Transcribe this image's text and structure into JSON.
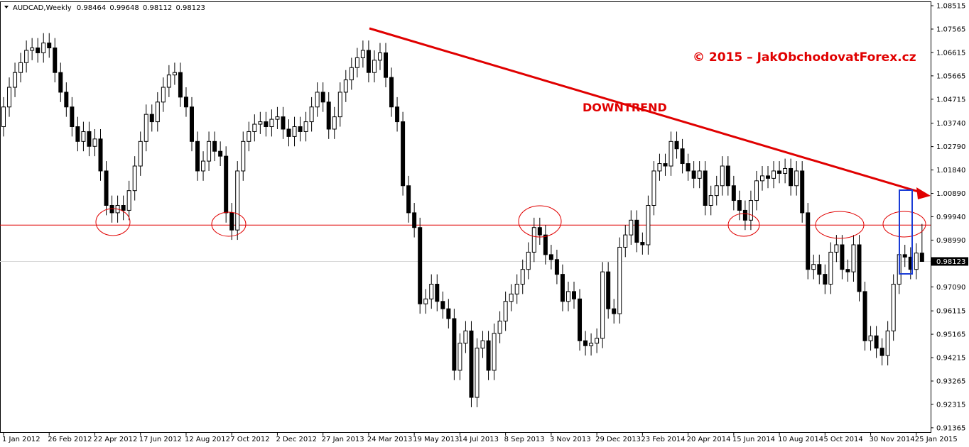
{
  "chart_data": {
    "type": "candlestick",
    "symbol": "AUDCAD,Weekly",
    "copyright": "© 2015 – JakObchodovatForex.cz",
    "annotation": "DOWNTREND",
    "up_color": "#ffffff",
    "down_color": "#000000",
    "level_color": "#e00000",
    "level": 0.996,
    "ylim": [
      0.9116,
      1.0866
    ],
    "yticks": [
      1.08515,
      1.07565,
      1.06615,
      1.05665,
      1.04715,
      {
        "value": 1.0374,
        "label": "1.03740"
      },
      {
        "value": 1.0279,
        "label": "1.02790"
      },
      {
        "value": 1.0184,
        "label": "1.01840"
      },
      {
        "value": 1.0089,
        "label": "1.00890"
      },
      {
        "value": 0.9994,
        "label": "0.99940"
      },
      {
        "value": 0.9899,
        "label": "0.98990"
      },
      {
        "value": 0.9709,
        "label": "0.97090"
      },
      0.96115,
      0.95165,
      0.94215,
      0.93265,
      0.92315,
      0.91365
    ],
    "categories": [
      "1 Jan 2012",
      null,
      null,
      null,
      null,
      null,
      null,
      null,
      "26 Feb 2012",
      null,
      null,
      null,
      null,
      null,
      null,
      null,
      "22 Apr 2012",
      null,
      null,
      null,
      null,
      null,
      null,
      null,
      "17 Jun 2012",
      null,
      null,
      null,
      null,
      null,
      null,
      null,
      "12 Aug 2012",
      null,
      null,
      null,
      null,
      null,
      null,
      null,
      "7 Oct 2012",
      null,
      null,
      null,
      null,
      null,
      null,
      null,
      "2 Dec 2012",
      null,
      null,
      null,
      null,
      null,
      null,
      null,
      "27 Jan 2013",
      null,
      null,
      null,
      null,
      null,
      null,
      null,
      "24 Mar 2013",
      null,
      null,
      null,
      null,
      null,
      null,
      null,
      "19 May 2013",
      null,
      null,
      null,
      null,
      null,
      null,
      null,
      "14 Jul 2013",
      null,
      null,
      null,
      null,
      null,
      null,
      null,
      "8 Sep 2013",
      null,
      null,
      null,
      null,
      null,
      null,
      null,
      "3 Nov 2013",
      null,
      null,
      null,
      null,
      null,
      null,
      null,
      "29 Dec 2013",
      null,
      null,
      null,
      null,
      null,
      null,
      null,
      "23 Feb 2014",
      null,
      null,
      null,
      null,
      null,
      null,
      null,
      "20 Apr 2014",
      null,
      null,
      null,
      null,
      null,
      null,
      null,
      "15 Jun 2014",
      null,
      null,
      null,
      null,
      null,
      null,
      null,
      "10 Aug 2014",
      null,
      null,
      null,
      null,
      null,
      null,
      null,
      "5 Oct 2014",
      null,
      null,
      null,
      null,
      null,
      null,
      null,
      "30 Nov 2014",
      null,
      null,
      null,
      null,
      null,
      null,
      null,
      "25 Jan 2015",
      null
    ],
    "open": [
      1.036,
      1.044,
      1.052,
      1.058,
      1.062,
      1.067,
      1.068,
      1.066,
      1.07,
      1.068,
      1.058,
      1.05,
      1.044,
      1.036,
      1.03,
      1.034,
      1.028,
      1.031,
      1.018,
      1.004,
      1.001,
      1.004,
      1.002,
      1.01,
      1.02,
      1.03,
      1.041,
      1.038,
      1.046,
      1.052,
      1.057,
      1.058,
      1.048,
      1.044,
      1.03,
      1.018,
      1.022,
      1.03,
      1.026,
      1.024,
      1.001,
      0.994,
      1.018,
      1.03,
      1.034,
      1.037,
      1.038,
      1.036,
      1.039,
      1.04,
      1.035,
      1.032,
      1.036,
      1.034,
      1.038,
      1.044,
      1.05,
      1.046,
      1.035,
      1.04,
      1.05,
      1.055,
      1.06,
      1.064,
      1.067,
      1.058,
      1.063,
      1.066,
      1.056,
      1.044,
      1.038,
      1.012,
      1.001,
      0.995,
      0.964,
      0.966,
      0.972,
      0.965,
      0.962,
      0.958,
      0.937,
      0.948,
      0.953,
      0.926,
      0.946,
      0.949,
      0.937,
      0.952,
      0.957,
      0.965,
      0.968,
      0.972,
      0.978,
      0.985,
      0.995,
      0.992,
      0.984,
      0.982,
      0.976,
      0.965,
      0.969,
      0.966,
      0.949,
      0.947,
      0.948,
      0.95,
      0.977,
      0.962,
      0.96,
      0.987,
      0.992,
      0.998,
      0.989,
      0.988,
      1.004,
      1.018,
      1.021,
      1.02,
      1.03,
      1.027,
      1.021,
      1.018,
      1.015,
      1.018,
      1.004,
      1.008,
      1.012,
      1.02,
      1.012,
      1.006,
      1.002,
      0.998,
      1.006,
      1.014,
      1.016,
      1.015,
      1.018,
      1.017,
      1.019,
      1.012,
      1.018,
      1.001,
      0.978,
      0.98,
      0.976,
      0.972,
      0.985,
      0.988,
      0.978,
      0.977,
      0.988,
      0.969,
      0.949,
      0.951,
      0.946,
      0.943,
      0.953,
      0.972,
      0.984,
      0.983,
      0.978,
      0.98464
    ],
    "high": [
      1.048,
      1.056,
      1.062,
      1.066,
      1.071,
      1.072,
      1.072,
      1.074,
      1.074,
      1.072,
      1.062,
      1.054,
      1.048,
      1.04,
      1.038,
      1.038,
      1.035,
      1.035,
      1.022,
      1.008,
      1.008,
      1.008,
      1.014,
      1.024,
      1.034,
      1.045,
      1.045,
      1.05,
      1.056,
      1.061,
      1.062,
      1.062,
      1.052,
      1.048,
      1.034,
      1.026,
      1.034,
      1.034,
      1.03,
      1.028,
      1.005,
      1.022,
      1.034,
      1.038,
      1.041,
      1.042,
      1.042,
      1.043,
      1.044,
      1.044,
      1.039,
      1.04,
      1.04,
      1.042,
      1.048,
      1.054,
      1.054,
      1.05,
      1.044,
      1.054,
      1.059,
      1.064,
      1.068,
      1.071,
      1.071,
      1.067,
      1.07,
      1.07,
      1.06,
      1.048,
      1.042,
      1.016,
      1.005,
      0.999,
      0.97,
      0.976,
      0.976,
      0.969,
      0.966,
      0.962,
      0.952,
      0.957,
      0.957,
      0.95,
      0.953,
      0.953,
      0.956,
      0.961,
      0.969,
      0.972,
      0.976,
      0.982,
      0.989,
      0.999,
      0.999,
      0.996,
      0.988,
      0.986,
      0.98,
      0.973,
      0.973,
      0.97,
      0.953,
      0.952,
      0.954,
      0.981,
      0.981,
      0.966,
      0.991,
      0.996,
      1.002,
      1.002,
      0.993,
      1.008,
      1.022,
      1.025,
      1.025,
      1.034,
      1.034,
      1.031,
      1.025,
      1.022,
      1.022,
      1.022,
      1.012,
      1.016,
      1.024,
      1.024,
      1.016,
      1.01,
      1.006,
      1.01,
      1.018,
      1.02,
      1.02,
      1.022,
      1.022,
      1.023,
      1.023,
      1.022,
      1.022,
      1.005,
      0.984,
      0.984,
      0.98,
      0.989,
      0.992,
      0.992,
      0.982,
      0.992,
      0.992,
      0.973,
      0.955,
      0.955,
      0.95,
      0.957,
      0.976,
      0.988,
      0.988,
      0.987,
      0.9886,
      0.99648
    ],
    "low": [
      1.032,
      1.04,
      1.048,
      1.054,
      1.058,
      1.063,
      1.062,
      1.062,
      1.064,
      1.054,
      1.046,
      1.04,
      1.032,
      1.026,
      1.026,
      1.024,
      1.024,
      1.014,
      1.0,
      0.997,
      0.997,
      0.998,
      0.998,
      1.006,
      1.016,
      1.026,
      1.034,
      1.034,
      1.042,
      1.048,
      1.053,
      1.044,
      1.04,
      1.026,
      1.014,
      1.014,
      1.018,
      1.022,
      1.02,
      0.997,
      0.99,
      0.99,
      1.014,
      1.026,
      1.03,
      1.033,
      1.032,
      1.032,
      1.035,
      1.031,
      1.028,
      1.028,
      1.03,
      1.03,
      1.034,
      1.04,
      1.042,
      1.031,
      1.031,
      1.036,
      1.046,
      1.051,
      1.056,
      1.06,
      1.054,
      1.054,
      1.059,
      1.052,
      1.04,
      1.034,
      1.008,
      0.997,
      0.991,
      0.96,
      0.96,
      0.962,
      0.961,
      0.958,
      0.954,
      0.933,
      0.933,
      0.944,
      0.922,
      0.922,
      0.942,
      0.933,
      0.933,
      0.948,
      0.953,
      0.961,
      0.964,
      0.968,
      0.974,
      0.981,
      0.988,
      0.98,
      0.978,
      0.972,
      0.961,
      0.961,
      0.962,
      0.945,
      0.943,
      0.943,
      0.944,
      0.946,
      0.958,
      0.956,
      0.956,
      0.983,
      0.988,
      0.985,
      0.984,
      0.984,
      1.0,
      1.014,
      1.016,
      1.016,
      1.023,
      1.017,
      1.014,
      1.011,
      1.011,
      1.0,
      1.0,
      1.004,
      1.008,
      1.008,
      1.002,
      0.998,
      0.994,
      0.994,
      1.002,
      1.01,
      1.011,
      1.011,
      1.013,
      1.013,
      1.008,
      1.008,
      0.997,
      0.974,
      0.974,
      0.972,
      0.968,
      0.968,
      0.981,
      0.974,
      0.973,
      0.973,
      0.965,
      0.945,
      0.945,
      0.942,
      0.939,
      0.939,
      0.949,
      0.968,
      0.979,
      0.974,
      0.974,
      0.98112
    ],
    "close": [
      1.044,
      1.052,
      1.058,
      1.062,
      1.067,
      1.068,
      1.066,
      1.07,
      1.068,
      1.058,
      1.05,
      1.044,
      1.036,
      1.03,
      1.034,
      1.028,
      1.031,
      1.018,
      1.004,
      1.001,
      1.004,
      1.002,
      1.01,
      1.02,
      1.03,
      1.041,
      1.038,
      1.046,
      1.052,
      1.057,
      1.058,
      1.048,
      1.044,
      1.03,
      1.018,
      1.022,
      1.03,
      1.026,
      1.024,
      1.001,
      0.994,
      1.018,
      1.03,
      1.034,
      1.037,
      1.038,
      1.036,
      1.039,
      1.04,
      1.035,
      1.032,
      1.036,
      1.034,
      1.038,
      1.044,
      1.05,
      1.046,
      1.035,
      1.04,
      1.05,
      1.055,
      1.06,
      1.064,
      1.067,
      1.058,
      1.063,
      1.066,
      1.056,
      1.044,
      1.038,
      1.012,
      1.001,
      0.995,
      0.964,
      0.966,
      0.972,
      0.965,
      0.962,
      0.958,
      0.937,
      0.948,
      0.953,
      0.926,
      0.946,
      0.949,
      0.937,
      0.952,
      0.957,
      0.965,
      0.968,
      0.972,
      0.978,
      0.985,
      0.995,
      0.992,
      0.984,
      0.982,
      0.976,
      0.965,
      0.969,
      0.966,
      0.949,
      0.947,
      0.948,
      0.95,
      0.977,
      0.962,
      0.96,
      0.987,
      0.992,
      0.998,
      0.989,
      0.988,
      1.004,
      1.018,
      1.021,
      1.02,
      1.03,
      1.027,
      1.021,
      1.018,
      1.015,
      1.018,
      1.004,
      1.008,
      1.012,
      1.02,
      1.012,
      1.006,
      1.002,
      0.998,
      1.006,
      1.014,
      1.016,
      1.015,
      1.018,
      1.017,
      1.019,
      1.012,
      1.018,
      1.001,
      0.978,
      0.98,
      0.976,
      0.972,
      0.985,
      0.988,
      0.978,
      0.977,
      0.988,
      0.969,
      0.949,
      0.951,
      0.946,
      0.943,
      0.953,
      0.972,
      0.984,
      0.983,
      0.978,
      0.98464,
      0.98123
    ]
  }
}
